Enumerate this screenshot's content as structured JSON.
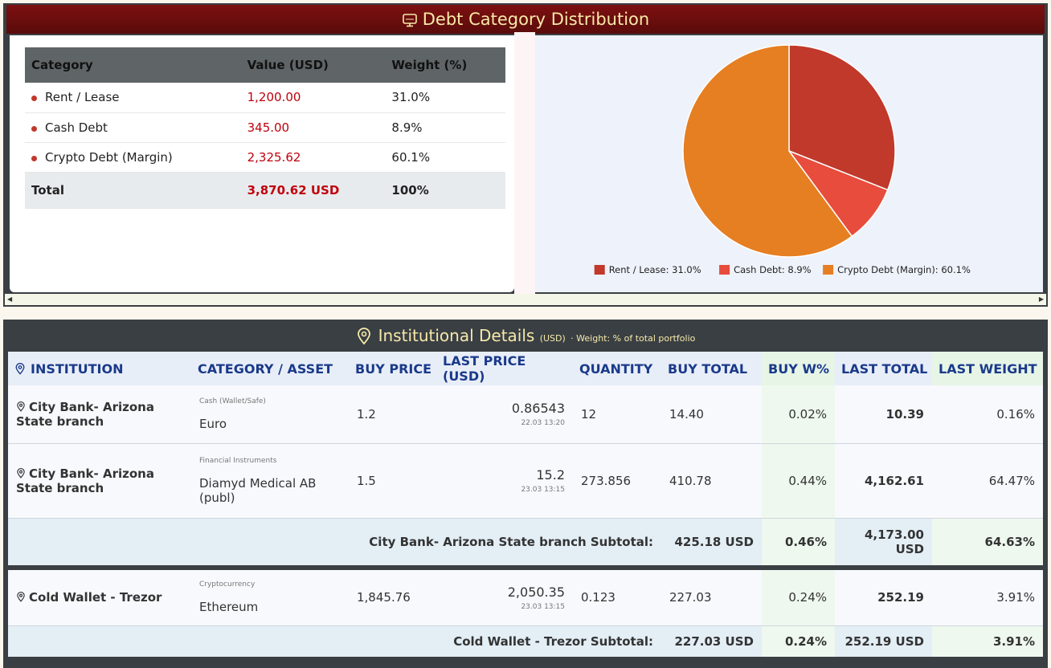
{
  "debt": {
    "title": "Debt Category Distribution",
    "header": [
      "Category",
      "Value (USD)",
      "Weight (%)"
    ],
    "rows": [
      [
        "Rent / Lease",
        "1,200.00",
        "31.0%"
      ],
      [
        "Cash Debt",
        "345.00",
        "8.9%"
      ],
      [
        "Crypto Debt (Margin)",
        "2,325.62",
        "60.1%"
      ]
    ],
    "total": [
      "Total",
      "3,870.62 USD",
      "100%"
    ]
  },
  "chart_data": {
    "type": "pie",
    "categories": [
      "Rent / Lease",
      "Cash Debt",
      "Crypto Debt (Margin)"
    ],
    "values": [
      31.0,
      8.9,
      60.1
    ],
    "colors": [
      "#c0392b",
      "#e74c3c",
      "#e67e22"
    ],
    "legend": [
      "Rent / Lease: 31.0%",
      "Cash Debt: 8.9%",
      "Crypto Debt (Margin): 60.1%"
    ],
    "legend_position": "bottom"
  },
  "institutions": {
    "title": "Institutional Details",
    "unit": "(USD)",
    "note": "· Weight: % of total portfolio",
    "header": [
      "INSTITUTION",
      "CATEGORY / ASSET",
      "BUY PRICE",
      "LAST PRICE (USD)",
      "QUANTITY",
      "BUY TOTAL",
      "BUY W%",
      "LAST TOTAL",
      "LAST WEIGHT"
    ],
    "groups": [
      {
        "rows": [
          {
            "institution": "City Bank- Arizona State branch",
            "category": "Cash (Wallet/Safe)",
            "asset": "Euro",
            "buy_price": "1.2",
            "last_price": "0.86543",
            "last_time": "22.03 13:20",
            "quantity": "12",
            "buy_total": "14.40",
            "buy_weight": "0.02%",
            "last_total": "10.39",
            "last_weight": "0.16%"
          },
          {
            "institution": "City Bank- Arizona State branch",
            "category": "Financial Instruments",
            "asset": "Diamyd Medical AB (publ)",
            "buy_price": "1.5",
            "last_price": "15.2",
            "last_time": "23.03 13:15",
            "quantity": "273.856",
            "buy_total": "410.78",
            "buy_weight": "0.44%",
            "last_total": "4,162.61",
            "last_weight": "64.47%"
          }
        ],
        "subtotal": {
          "label": "City Bank- Arizona State branch Subtotal:",
          "buy_total": "425.18 USD",
          "buy_weight": "0.46%",
          "last_total": "4,173.00 USD",
          "last_weight": "64.63%"
        }
      },
      {
        "rows": [
          {
            "institution": "Cold Wallet - Trezor",
            "category": "Cryptocurrency",
            "asset": "Ethereum",
            "buy_price": "1,845.76",
            "last_price": "2,050.35",
            "last_time": "23.03 13:15",
            "quantity": "0.123",
            "buy_total": "227.03",
            "buy_weight": "0.24%",
            "last_total": "252.19",
            "last_weight": "3.91%"
          }
        ],
        "subtotal": {
          "label": "Cold Wallet - Trezor Subtotal:",
          "buy_total": "227.03 USD",
          "buy_weight": "0.24%",
          "last_total": "252.19 USD",
          "last_weight": "3.91%"
        }
      }
    ]
  }
}
